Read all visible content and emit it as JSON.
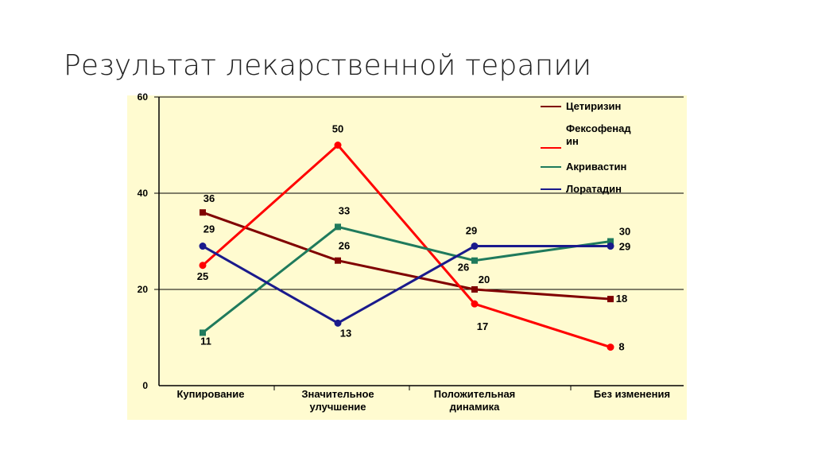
{
  "slide": {
    "title": "Результат лекарственной терапии"
  },
  "colors": {
    "background": "#fffbd0",
    "gridline": "#000000",
    "cetirizine": "#800000",
    "fexofenadine": "#ff0000",
    "acrivastine": "#1f7a5c",
    "loratadine": "#1a1a8c"
  },
  "chart_data": {
    "type": "line",
    "categories": [
      [
        "Купирование"
      ],
      [
        "Значительное",
        "улучшение"
      ],
      [
        "Положительная",
        "динамика"
      ],
      [
        "Без изменения"
      ]
    ],
    "ylim": [
      0,
      60
    ],
    "yticks": [
      "0",
      "20",
      "40",
      "60"
    ],
    "grid": true,
    "legend_position": "top-right",
    "series": [
      {
        "name": "Цетиризин",
        "color": "#800000",
        "values": [
          36,
          26,
          20,
          18
        ],
        "marker": "square",
        "labels": [
          "36",
          "26",
          "20",
          "18"
        ]
      },
      {
        "name": "Фексофенадин",
        "color": "#ff0000",
        "values": [
          25,
          50,
          17,
          8
        ],
        "marker": "circle",
        "labels": [
          "25",
          "50",
          "17",
          "8"
        ]
      },
      {
        "name": "Акривастин",
        "color": "#1f7a5c",
        "values": [
          11,
          33,
          26,
          30
        ],
        "marker": "square",
        "labels": [
          "11",
          "33",
          "26",
          "30"
        ]
      },
      {
        "name": "Лоратадин",
        "color": "#1a1a8c",
        "values": [
          29,
          13,
          29,
          29
        ],
        "marker": "circle",
        "labels": [
          "29",
          "13",
          "29",
          "29"
        ]
      }
    ],
    "legend": [
      {
        "lines": [
          "Цетиризин"
        ],
        "color": "#800000"
      },
      {
        "lines": [
          "Фексофенад",
          "ин"
        ],
        "color": "#ff0000"
      },
      {
        "lines": [
          "Акривастин"
        ],
        "color": "#1f7a5c"
      },
      {
        "lines": [
          "Лоратадин"
        ],
        "color": "#1a1a8c"
      }
    ]
  }
}
